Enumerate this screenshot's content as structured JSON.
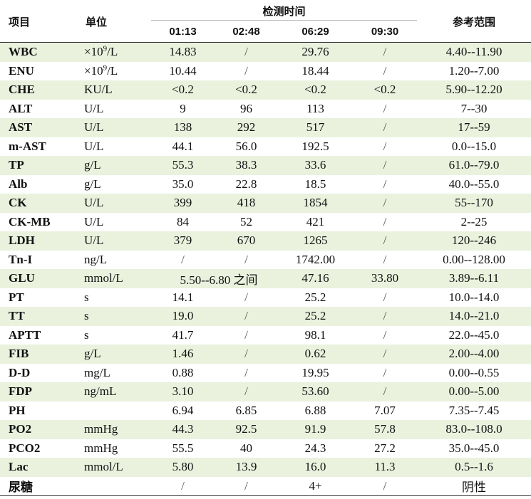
{
  "header": {
    "item": "项目",
    "unit": "单位",
    "time_group": "检测时间",
    "times": [
      "01:13",
      "02:48",
      "06:29",
      "09:30"
    ],
    "reference": "参考范围"
  },
  "rows": [
    {
      "item": "WBC",
      "unit_pre": "×10",
      "unit_sup": "9",
      "unit_post": "/L",
      "values": [
        "14.83",
        "/",
        "29.76",
        "/"
      ],
      "ref": "4.40--11.90"
    },
    {
      "item": "ENU",
      "unit_pre": "×10",
      "unit_sup": "9",
      "unit_post": "/L",
      "values": [
        "10.44",
        "/",
        "18.44",
        "/"
      ],
      "ref": "1.20--7.00"
    },
    {
      "item": "CHE",
      "unit": "KU/L",
      "values": [
        "<0.2",
        "<0.2",
        "<0.2",
        "<0.2"
      ],
      "ref": "5.90--12.20"
    },
    {
      "item": "ALT",
      "unit": "U/L",
      "values": [
        "9",
        "96",
        "113",
        "/"
      ],
      "ref": "7--30"
    },
    {
      "item": "AST",
      "unit": "U/L",
      "values": [
        "138",
        "292",
        "517",
        "/"
      ],
      "ref": "17--59"
    },
    {
      "item": "m-AST",
      "unit": "U/L",
      "values": [
        "44.1",
        "56.0",
        "192.5",
        "/"
      ],
      "ref": "0.0--15.0"
    },
    {
      "item": "TP",
      "unit": "g/L",
      "values": [
        "55.3",
        "38.3",
        "33.6",
        "/"
      ],
      "ref": "61.0--79.0"
    },
    {
      "item": "Alb",
      "unit": "g/L",
      "values": [
        "35.0",
        "22.8",
        "18.5",
        "/"
      ],
      "ref": "40.0--55.0"
    },
    {
      "item": "CK",
      "unit": "U/L",
      "values": [
        "399",
        "418",
        "1854",
        "/"
      ],
      "ref": "55--170"
    },
    {
      "item": "CK-MB",
      "unit": "U/L",
      "values": [
        "84",
        "52",
        "421",
        "/"
      ],
      "ref": "2--25"
    },
    {
      "item": "LDH",
      "unit": "U/L",
      "values": [
        "379",
        "670",
        "1265",
        "/"
      ],
      "ref": "120--246"
    },
    {
      "item": "Tn-I",
      "unit": "ng/L",
      "values": [
        "/",
        "/",
        "1742.00",
        "/"
      ],
      "ref": "0.00--128.00"
    },
    {
      "item": "GLU",
      "unit": "mmol/L",
      "span_value": "5.50--6.80 之间",
      "values": [
        "47.16",
        "33.80"
      ],
      "ref": "3.89--6.11"
    },
    {
      "item": "PT",
      "unit": "s",
      "values": [
        "14.1",
        "/",
        "25.2",
        "/"
      ],
      "ref": "10.0--14.0"
    },
    {
      "item": "TT",
      "unit": "s",
      "values": [
        "19.0",
        "/",
        "25.2",
        "/"
      ],
      "ref": "14.0--21.0"
    },
    {
      "item": "APTT",
      "unit": "s",
      "values": [
        "41.7",
        "/",
        "98.1",
        "/"
      ],
      "ref": "22.0--45.0"
    },
    {
      "item": "FIB",
      "unit": "g/L",
      "values": [
        "1.46",
        "/",
        "0.62",
        "/"
      ],
      "ref": "2.00--4.00"
    },
    {
      "item": "D-D",
      "unit": "mg/L",
      "values": [
        "0.88",
        "/",
        "19.95",
        "/"
      ],
      "ref": "0.00--0.55"
    },
    {
      "item": "FDP",
      "unit": "ng/mL",
      "values": [
        "3.10",
        "/",
        "53.60",
        "/"
      ],
      "ref": "0.00--5.00"
    },
    {
      "item": "PH",
      "unit": "",
      "values": [
        "6.94",
        "6.85",
        "6.88",
        "7.07"
      ],
      "ref": "7.35--7.45"
    },
    {
      "item": "PO2",
      "unit": "mmHg",
      "values": [
        "44.3",
        "92.5",
        "91.9",
        "57.8"
      ],
      "ref": "83.0--108.0"
    },
    {
      "item": "PCO2",
      "unit": "mmHg",
      "values": [
        "55.5",
        "40",
        "24.3",
        "27.2"
      ],
      "ref": "35.0--45.0"
    },
    {
      "item": "Lac",
      "unit": "mmol/L",
      "values": [
        "5.80",
        "13.9",
        "16.0",
        "11.3"
      ],
      "ref": "0.5--1.6"
    },
    {
      "item": "尿糖",
      "unit": "",
      "values": [
        "/",
        "/",
        "4+",
        "/"
      ],
      "ref": "阴性"
    }
  ],
  "colors": {
    "shade_row": "#eaf2de",
    "rule": "#333333"
  }
}
